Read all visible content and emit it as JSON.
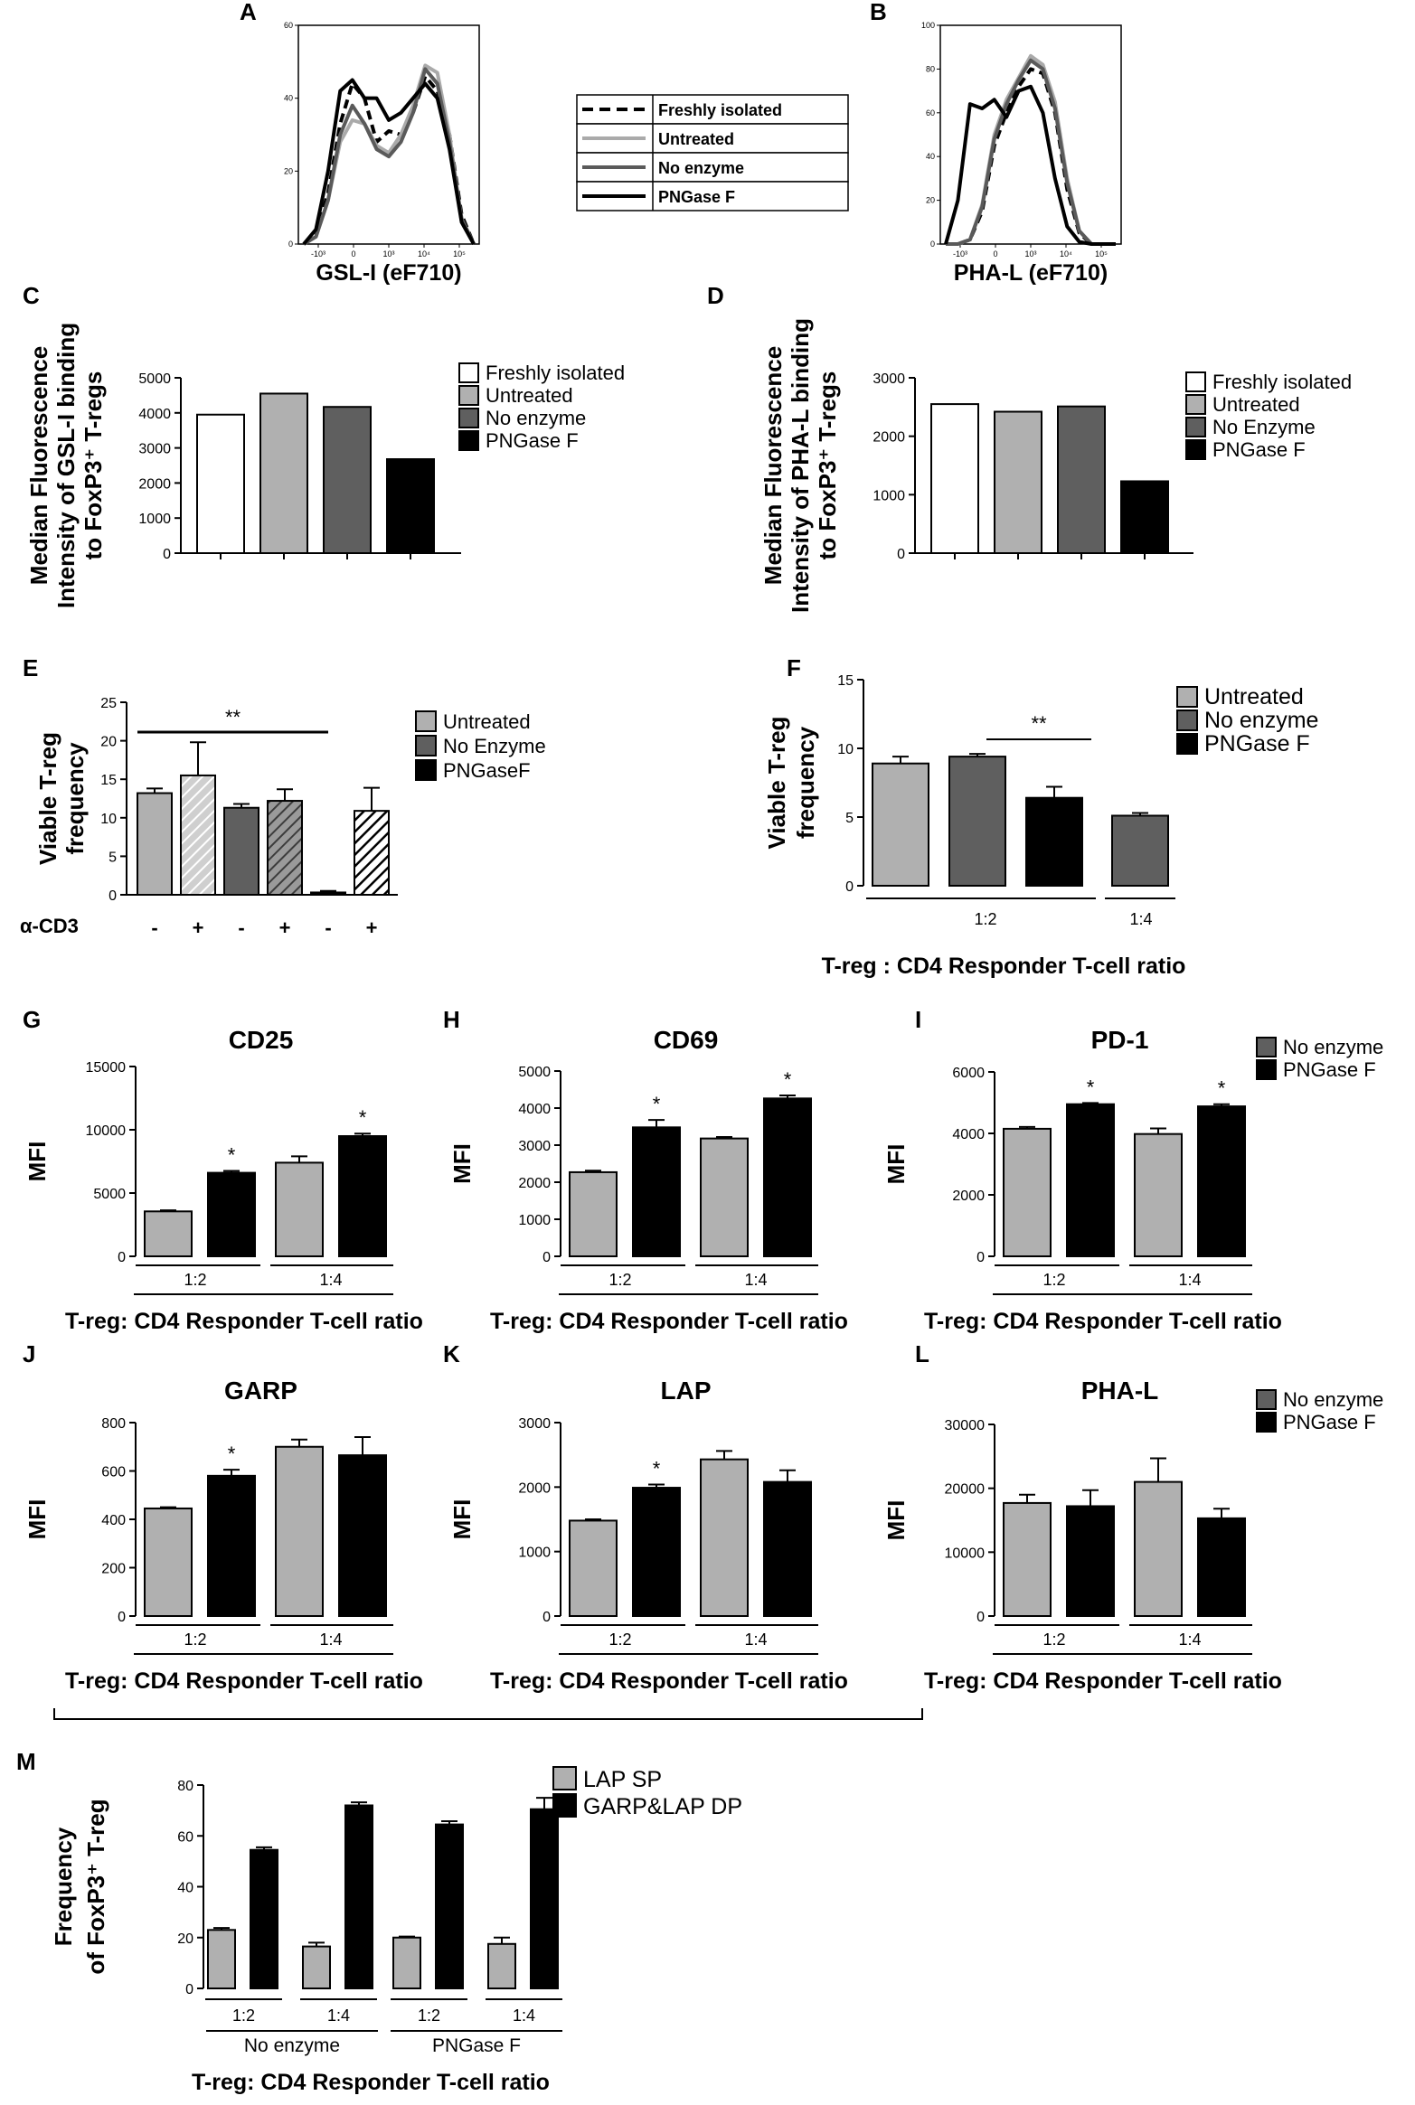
{
  "figure": {
    "bottom_bracket": true
  },
  "chart_data": [
    {
      "id": "A",
      "type": "line",
      "panel": "A",
      "xlabel": "GSL-I (eF710)",
      "ylabel": "",
      "ylim": [
        0,
        60
      ],
      "yticks": [
        "0",
        "20",
        "40",
        "60"
      ],
      "xticks": [
        "-10³",
        "0",
        "10³",
        "10⁴",
        "10⁵"
      ],
      "series": [
        {
          "name": "Freshly isolated",
          "style": "dashed",
          "color": "#000000",
          "y": [
            0,
            3,
            14,
            33,
            44,
            40,
            28,
            31,
            30,
            36,
            46,
            42,
            30,
            8,
            0
          ]
        },
        {
          "name": "Untreated",
          "style": "solid",
          "color": "#aaaaaa",
          "y": [
            0,
            2,
            12,
            28,
            34,
            33,
            27,
            25,
            30,
            38,
            49,
            47,
            30,
            6,
            0
          ]
        },
        {
          "name": "No enzyme",
          "style": "solid",
          "color": "#5a5a5a",
          "y": [
            0,
            2,
            12,
            30,
            38,
            33,
            26,
            24,
            28,
            36,
            48,
            44,
            28,
            7,
            0
          ]
        },
        {
          "name": "PNGase F",
          "style": "solid",
          "color": "#000000",
          "y": [
            0,
            4,
            20,
            42,
            45,
            40,
            40,
            34,
            36,
            40,
            44,
            40,
            26,
            6,
            0
          ]
        }
      ]
    },
    {
      "id": "B",
      "type": "line",
      "panel": "B",
      "xlabel": "PHA-L (eF710)",
      "ylabel": "",
      "ylim": [
        0,
        100
      ],
      "yticks": [
        "0",
        "20",
        "40",
        "60",
        "80",
        "100"
      ],
      "xticks": [
        "-10³",
        "0",
        "10³",
        "10⁴",
        "10⁵"
      ],
      "series": [
        {
          "name": "Freshly isolated",
          "style": "dashed",
          "color": "#000000",
          "y": [
            0,
            0,
            2,
            15,
            45,
            60,
            72,
            80,
            78,
            60,
            25,
            5,
            0,
            0,
            0
          ]
        },
        {
          "name": "Untreated",
          "style": "solid",
          "color": "#aaaaaa",
          "y": [
            0,
            0,
            2,
            18,
            50,
            66,
            76,
            86,
            82,
            65,
            30,
            6,
            0,
            0,
            0
          ]
        },
        {
          "name": "No enzyme",
          "style": "solid",
          "color": "#5a5a5a",
          "y": [
            0,
            0,
            2,
            17,
            48,
            64,
            75,
            84,
            80,
            62,
            28,
            6,
            0,
            0,
            0
          ]
        },
        {
          "name": "PNGase F",
          "style": "solid",
          "color": "#000000",
          "y": [
            0,
            20,
            64,
            62,
            66,
            58,
            70,
            72,
            60,
            30,
            8,
            1,
            0,
            0,
            0
          ]
        }
      ]
    },
    {
      "id": "C",
      "type": "bar",
      "panel": "C",
      "title": "",
      "ylabel": "Median Fluorescence\nIntensity of GSL-I binding\nto FoxP3⁺ T-regs",
      "ylim": [
        0,
        5000
      ],
      "yticks": [
        0,
        1000,
        2000,
        3000,
        4000,
        5000
      ],
      "categories": [
        "Freshly isolated",
        "Untreated",
        "No enzyme",
        "PNGase F"
      ],
      "values": [
        3950,
        4550,
        4170,
        2680
      ],
      "colors": [
        "#ffffff",
        "#b0b0b0",
        "#5f5f5f",
        "#000000"
      ],
      "legend": [
        "Freshly isolated",
        "Untreated",
        "No enzyme",
        "PNGase F"
      ]
    },
    {
      "id": "D",
      "type": "bar",
      "panel": "D",
      "title": "",
      "ylabel": "Median Fluorescence\nIntensity of PHA-L binding\nto FoxP3⁺ T-regs",
      "ylim": [
        0,
        3000
      ],
      "yticks": [
        0,
        1000,
        2000,
        3000
      ],
      "categories": [
        "Freshly isolated",
        "Untreated",
        "No Enzyme",
        "PNGase F"
      ],
      "values": [
        2550,
        2420,
        2510,
        1230
      ],
      "colors": [
        "#ffffff",
        "#b0b0b0",
        "#5f5f5f",
        "#000000"
      ],
      "legend": [
        "Freshly isolated",
        "Untreated",
        "No Enzyme",
        "PNGase F"
      ]
    },
    {
      "id": "E",
      "type": "bar",
      "panel": "E",
      "ylabel": "Viable T-reg\nfrequency",
      "ylim": [
        0,
        25
      ],
      "yticks": [
        0,
        5,
        10,
        15,
        20,
        25
      ],
      "categories": [
        "-",
        "+",
        "-",
        "+",
        "-",
        "+"
      ],
      "row_label": "α-CD3",
      "values": [
        13.2,
        15.5,
        11.3,
        12.2,
        0.3,
        10.9
      ],
      "errors": [
        0.6,
        4.3,
        0.5,
        1.5,
        0.2,
        3.0
      ],
      "colors": [
        "#b0b0b0",
        "#b0b0b0",
        "#5f5f5f",
        "#5f5f5f",
        "#000000",
        "#000000"
      ],
      "hatched": [
        false,
        true,
        false,
        true,
        false,
        true
      ],
      "significance": {
        "label": "**",
        "from": 0,
        "to": 4
      },
      "legend": [
        "Untreated",
        "No Enzyme",
        "PNGaseF"
      ],
      "legend_colors": [
        "#b0b0b0",
        "#5f5f5f",
        "#000000"
      ]
    },
    {
      "id": "F",
      "type": "bar",
      "panel": "F",
      "ylabel": "Viable T-reg\nfrequency",
      "xlabel": "T-reg : CD4 Responder T-cell ratio",
      "ylim": [
        0,
        15
      ],
      "yticks": [
        0,
        5,
        10,
        15
      ],
      "groups": [
        "1:2",
        "1:4"
      ],
      "values": [
        8.9,
        9.4,
        6.4,
        5.1
      ],
      "errors": [
        0.5,
        0.2,
        0.8,
        0.2
      ],
      "colors": [
        "#b0b0b0",
        "#5f5f5f",
        "#000000",
        "#5f5f5f"
      ],
      "significance": {
        "label": "**",
        "from": 1,
        "to": 2
      },
      "legend": [
        "Untreated",
        "No enzyme",
        "PNGase F"
      ],
      "legend_colors": [
        "#b0b0b0",
        "#5f5f5f",
        "#000000"
      ]
    },
    {
      "id": "G",
      "type": "bar",
      "panel": "G",
      "title": "CD25",
      "ylabel": "MFI",
      "xlabel": "T-reg: CD4 Responder T-cell ratio",
      "ylim": [
        0,
        15000
      ],
      "yticks": [
        0,
        5000,
        10000,
        15000
      ],
      "groups": [
        "1:2",
        "1:4"
      ],
      "values": [
        3550,
        6600,
        7400,
        9500
      ],
      "errors": [
        80,
        150,
        500,
        200
      ],
      "colors": [
        "#b0b0b0",
        "#000000",
        "#b0b0b0",
        "#000000"
      ],
      "stars": [
        "",
        "*",
        "",
        "*"
      ]
    },
    {
      "id": "H",
      "type": "bar",
      "panel": "H",
      "title": "CD69",
      "ylabel": "MFI",
      "xlabel": "T-reg: CD4 Responder T-cell ratio",
      "ylim": [
        0,
        5000
      ],
      "yticks": [
        0,
        1000,
        2000,
        3000,
        4000,
        5000
      ],
      "groups": [
        "1:2",
        "1:4"
      ],
      "values": [
        2270,
        3480,
        3180,
        4260
      ],
      "errors": [
        40,
        200,
        40,
        80
      ],
      "colors": [
        "#b0b0b0",
        "#000000",
        "#b0b0b0",
        "#000000"
      ],
      "stars": [
        "",
        "*",
        "",
        "*"
      ]
    },
    {
      "id": "I",
      "type": "bar",
      "panel": "I",
      "title": "PD-1",
      "ylabel": "MFI",
      "xlabel": "T-reg: CD4 Responder T-cell ratio",
      "ylim": [
        0,
        6000
      ],
      "yticks": [
        0,
        2000,
        4000,
        6000
      ],
      "groups": [
        "1:2",
        "1:4"
      ],
      "values": [
        4150,
        4950,
        3980,
        4880
      ],
      "errors": [
        60,
        40,
        180,
        70
      ],
      "colors": [
        "#b0b0b0",
        "#000000",
        "#b0b0b0",
        "#000000"
      ],
      "stars": [
        "",
        "*",
        "",
        "*"
      ],
      "legend": [
        "No enzyme",
        "PNGase F"
      ],
      "legend_colors": [
        "#5f5f5f",
        "#000000"
      ]
    },
    {
      "id": "J",
      "type": "bar",
      "panel": "J",
      "title": "GARP",
      "ylabel": "MFI",
      "xlabel": "T-reg: CD4 Responder T-cell ratio",
      "ylim": [
        0,
        800
      ],
      "yticks": [
        0,
        200,
        400,
        600,
        800
      ],
      "groups": [
        "1:2",
        "1:4"
      ],
      "values": [
        445,
        580,
        700,
        665
      ],
      "errors": [
        5,
        25,
        30,
        75
      ],
      "colors": [
        "#b0b0b0",
        "#000000",
        "#b0b0b0",
        "#000000"
      ],
      "stars": [
        "",
        "*",
        "",
        ""
      ]
    },
    {
      "id": "K",
      "type": "bar",
      "panel": "K",
      "title": "LAP",
      "ylabel": "MFI",
      "xlabel": "T-reg: CD4 Responder T-cell ratio",
      "ylim": [
        0,
        3000
      ],
      "yticks": [
        0,
        1000,
        2000,
        3000
      ],
      "groups": [
        "1:2",
        "1:4"
      ],
      "values": [
        1480,
        1990,
        2430,
        2080
      ],
      "errors": [
        20,
        50,
        130,
        180
      ],
      "colors": [
        "#b0b0b0",
        "#000000",
        "#b0b0b0",
        "#000000"
      ],
      "stars": [
        "",
        "*",
        "",
        ""
      ]
    },
    {
      "id": "L",
      "type": "bar",
      "panel": "L",
      "title": "PHA-L",
      "ylabel": "MFI",
      "xlabel": "T-reg: CD4 Responder T-cell ratio",
      "ylim": [
        0,
        30000
      ],
      "yticks": [
        0,
        10000,
        20000,
        30000
      ],
      "groups": [
        "1:2",
        "1:4"
      ],
      "values": [
        17700,
        17200,
        21000,
        15300
      ],
      "errors": [
        1300,
        2500,
        3700,
        1500
      ],
      "colors": [
        "#b0b0b0",
        "#000000",
        "#b0b0b0",
        "#000000"
      ],
      "stars": [
        "",
        "",
        "",
        ""
      ],
      "legend": [
        "No enzyme",
        "PNGase F"
      ],
      "legend_colors": [
        "#5f5f5f",
        "#000000"
      ]
    },
    {
      "id": "M",
      "type": "bar",
      "panel": "M",
      "ylabel": "Frequency\nof FoxP3⁺ T-reg",
      "xlabel": "T-reg: CD4 Responder T-cell ratio",
      "ylim": [
        0,
        80
      ],
      "yticks": [
        0,
        20,
        40,
        60,
        80
      ],
      "groups": [
        "1:2",
        "1:4",
        "1:2",
        "1:4"
      ],
      "supergroups": [
        "No enzyme",
        "PNGase F"
      ],
      "series": [
        {
          "name": "LAP SP",
          "color": "#b0b0b0",
          "values": [
            23,
            16.5,
            20,
            17.5
          ],
          "errors": [
            0.8,
            1.5,
            0.4,
            2.5
          ]
        },
        {
          "name": "GARP&LAP DP",
          "color": "#000000",
          "values": [
            54.5,
            72,
            64.5,
            70.5
          ],
          "errors": [
            1.0,
            1.2,
            1.3,
            4.5
          ]
        }
      ]
    }
  ]
}
